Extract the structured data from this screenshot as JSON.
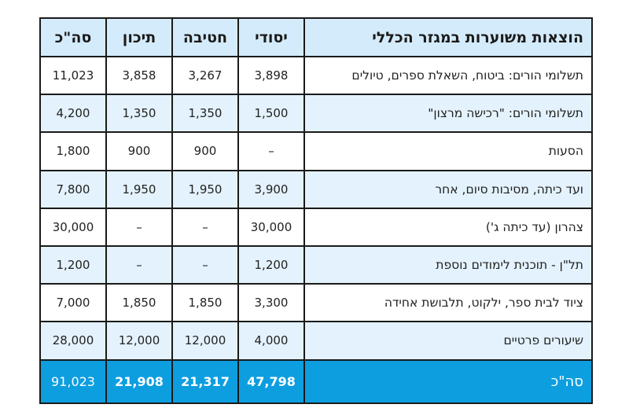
{
  "header": {
    "description": "הוצאות משוערות במגזר הכללי",
    "elementary": "יסודי",
    "middle": "חטיבה",
    "high": "תיכון",
    "total": "סה\"כ"
  },
  "rows": [
    {
      "label": "תשלומי הורים: ביטוח, השאלת ספרים, טיולים",
      "elementary": "3,898",
      "middle": "3,267",
      "high": "3,858",
      "total": "11,023"
    },
    {
      "label": "תשלומי הורים: \"רכישה מרצון\"",
      "elementary": "1,500",
      "middle": "1,350",
      "high": "1,350",
      "total": "4,200"
    },
    {
      "label": "הסעות",
      "elementary": "–",
      "middle": "900",
      "high": "900",
      "total": "1,800"
    },
    {
      "label": "ועד כיתה, מסיבות סיום, אחר",
      "elementary": "3,900",
      "middle": "1,950",
      "high": "1,950",
      "total": "7,800"
    },
    {
      "label": "צהרון (עד כיתה ג')",
      "elementary": "30,000",
      "middle": "–",
      "high": "–",
      "total": "30,000"
    },
    {
      "label": "תל\"ן - תוכנית לימודים נוספת",
      "elementary": "1,200",
      "middle": "–",
      "high": "–",
      "total": "1,200"
    },
    {
      "label": "ציוד לבית ספר, ילקוט, תלבושת אחידה",
      "elementary": "3,300",
      "middle": "1,850",
      "high": "1,850",
      "total": "7,000"
    },
    {
      "label": "שיעורים פרטיים",
      "elementary": "4,000",
      "middle": "12,000",
      "high": "12,000",
      "total": "28,000"
    }
  ],
  "total_row": {
    "label": "סה\"כ",
    "elementary": "47,798",
    "middle": "21,317",
    "high": "21,908",
    "total": "91,023"
  },
  "colors": {
    "header": "#d4ebfb",
    "alt_row": "#e3f2fc",
    "total_row": "#0d9ee0"
  }
}
